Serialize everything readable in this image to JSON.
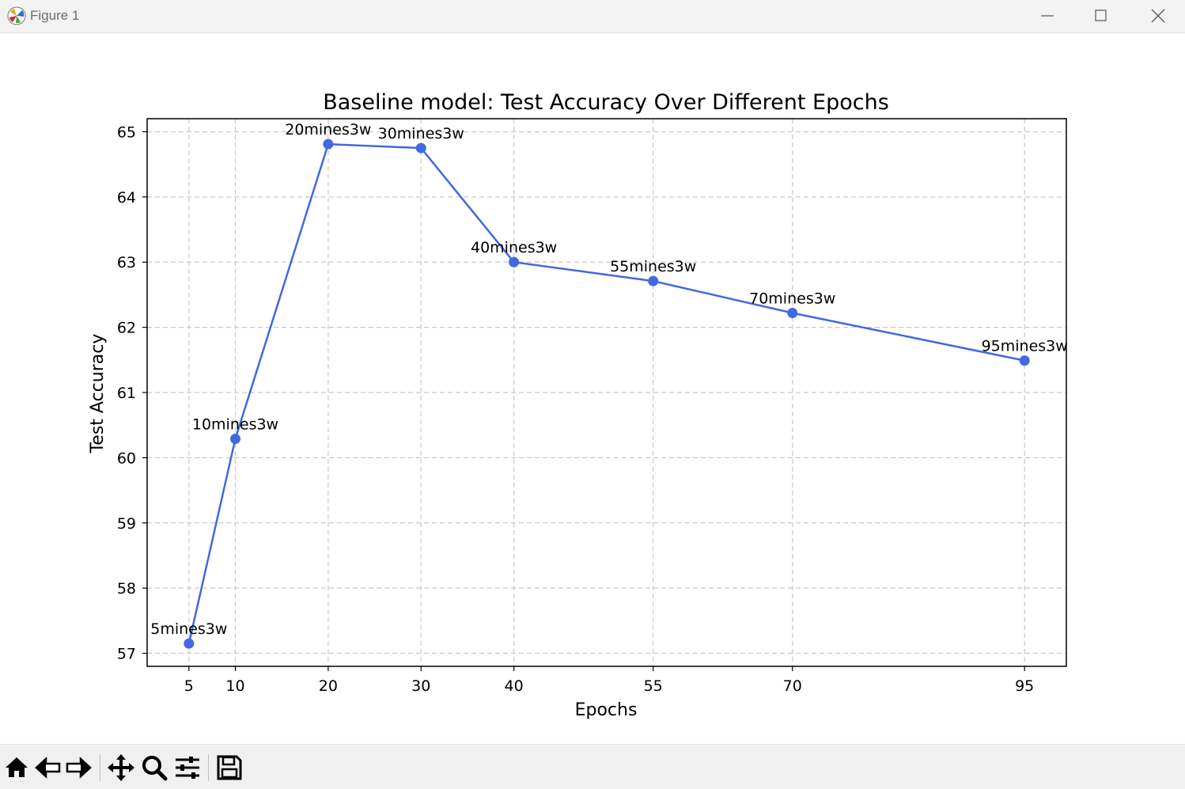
{
  "window": {
    "title": "Figure 1"
  },
  "toolbar": {
    "buttons": [
      {
        "name": "home-icon",
        "label": "Home"
      },
      {
        "name": "back-icon",
        "label": "Back"
      },
      {
        "name": "forward-icon",
        "label": "Forward"
      },
      {
        "name": "pan-icon",
        "label": "Pan"
      },
      {
        "name": "zoom-icon",
        "label": "Zoom"
      },
      {
        "name": "configure-subplots-icon",
        "label": "Configure subplots"
      },
      {
        "name": "save-icon",
        "label": "Save"
      }
    ]
  },
  "chart_data": {
    "type": "line",
    "title": "Baseline model: Test Accuracy Over Different Epochs",
    "xlabel": "Epochs",
    "ylabel": "Test Accuracy",
    "x": [
      5,
      10,
      20,
      30,
      40,
      55,
      70,
      95
    ],
    "xticks": [
      5,
      10,
      20,
      30,
      40,
      55,
      70,
      95
    ],
    "yticks": [
      57,
      58,
      59,
      60,
      61,
      62,
      63,
      64,
      65
    ],
    "xlim": [
      0.5,
      99.5
    ],
    "ylim": [
      56.8,
      65.2
    ],
    "grid": true,
    "series": [
      {
        "values": [
          57.15,
          60.29,
          64.81,
          64.75,
          63.0,
          62.71,
          62.22,
          61.49
        ],
        "color": "#4169e1",
        "marker": "circle",
        "point_labels": [
          "5mines3w",
          "10mines3w",
          "20mines3w",
          "30mines3w",
          "40mines3w",
          "55mines3w",
          "70mines3w",
          "95mines3w"
        ]
      }
    ]
  }
}
